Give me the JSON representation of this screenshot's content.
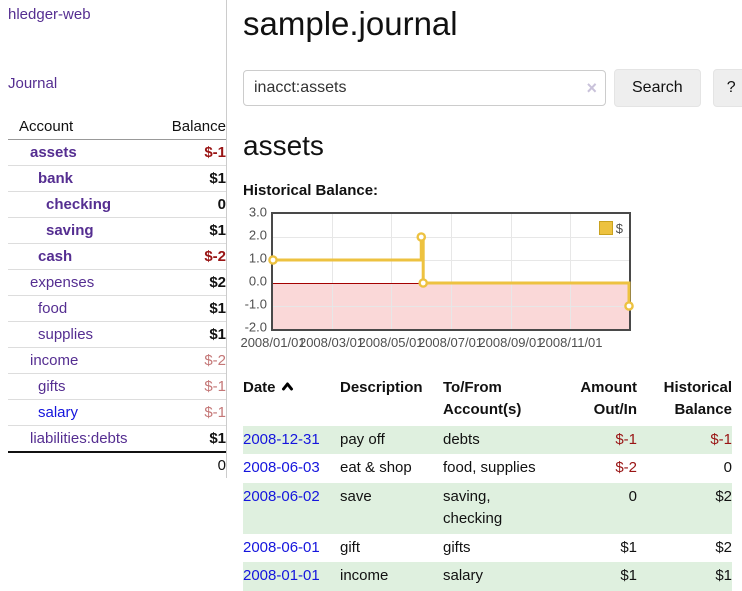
{
  "app": {
    "title": "hledger-web",
    "nav_journal": "Journal"
  },
  "colors": {
    "link_purple": "#552e91",
    "link_blue": "#1515dd",
    "negative_strong": "#991414",
    "negative_light": "#c47777",
    "register_negative": "#993333",
    "row_stripe_green": "#dff0df",
    "series_yellow": "#edc240"
  },
  "sidebar": {
    "headers": [
      "Account",
      "Balance"
    ],
    "rows": [
      {
        "name": "assets",
        "balance": "$-1",
        "depth": 1,
        "bold": true,
        "tone": "red",
        "link": "purple"
      },
      {
        "name": "bank",
        "balance": "$1",
        "depth": 2,
        "bold": true,
        "tone": "black",
        "link": "purple"
      },
      {
        "name": "checking",
        "balance": "0",
        "depth": 3,
        "bold": true,
        "tone": "black",
        "link": "purple"
      },
      {
        "name": "saving",
        "balance": "$1",
        "depth": 3,
        "bold": true,
        "tone": "black",
        "link": "purple"
      },
      {
        "name": "cash",
        "balance": "$-2",
        "depth": 2,
        "bold": true,
        "tone": "red",
        "link": "purple"
      },
      {
        "name": "expenses",
        "balance": "$2",
        "depth": 1,
        "bold": false,
        "tone": "black",
        "link": "purple",
        "bold_balance": true
      },
      {
        "name": "food",
        "balance": "$1",
        "depth": 2,
        "bold": false,
        "tone": "black",
        "link": "purple",
        "bold_balance": true
      },
      {
        "name": "supplies",
        "balance": "$1",
        "depth": 2,
        "bold": false,
        "tone": "black",
        "link": "purple",
        "bold_balance": true
      },
      {
        "name": "income",
        "balance": "$-2",
        "depth": 1,
        "bold": false,
        "tone": "red-light",
        "link": "purple"
      },
      {
        "name": "gifts",
        "balance": "$-1",
        "depth": 2,
        "bold": false,
        "tone": "red-light",
        "link": "purple"
      },
      {
        "name": "salary",
        "balance": "$-1",
        "depth": 2,
        "bold": false,
        "tone": "red-light",
        "link": "blue"
      },
      {
        "name": "liabilities:debts",
        "balance": "$1",
        "depth": 1,
        "bold": false,
        "tone": "black",
        "link": "purple",
        "bold_balance": true
      }
    ],
    "total": "0"
  },
  "main": {
    "title": "sample.journal",
    "search": {
      "value": "inacct:assets",
      "clear_icon": "×",
      "button": "Search",
      "help_button": "?"
    },
    "account_heading": "assets",
    "chart_heading": "Historical Balance:"
  },
  "chart_data": {
    "type": "line",
    "step": true,
    "title": "Historical Balance:",
    "legend": {
      "label": "$",
      "position": "top-right"
    },
    "series": [
      {
        "name": "$",
        "color": "#edc240",
        "points": [
          {
            "date": "2008-01-01",
            "value": 1
          },
          {
            "date": "2008-06-01",
            "value": 2
          },
          {
            "date": "2008-06-03",
            "value": 0
          },
          {
            "date": "2008-12-31",
            "value": -1
          }
        ]
      }
    ],
    "x_range": [
      "2008-01-01",
      "2008-12-31"
    ],
    "y_range": [
      -2,
      3
    ],
    "x_ticks": [
      "2008/01/01",
      "2008/03/01",
      "2008/05/01",
      "2008/07/01",
      "2008/09/01",
      "2008/11/01"
    ],
    "y_ticks": [
      "3.0",
      "2.0",
      "1.0",
      "0.0",
      "-1.0",
      "-2.0"
    ],
    "grid": true,
    "negative_region_color": "#fad8d8",
    "zero_line_color": "#a40000"
  },
  "register": {
    "headers": {
      "date": "Date",
      "description": "Description",
      "accounts": "To/From Account(s)",
      "amount": "Amount Out/In",
      "balance": "Historical Balance"
    },
    "rows": [
      {
        "date": "2008-12-31",
        "description": "pay off",
        "accounts": "debts",
        "amount": "$-1",
        "balance": "$-1",
        "amount_negative": true,
        "balance_negative": true
      },
      {
        "date": "2008-06-03",
        "description": "eat & shop",
        "accounts": "food, supplies",
        "amount": "$-2",
        "balance": "0",
        "amount_negative": true,
        "balance_negative": false
      },
      {
        "date": "2008-06-02",
        "description": "save",
        "accounts": "saving, checking",
        "amount": "0",
        "balance": "$2",
        "amount_negative": false,
        "balance_negative": false
      },
      {
        "date": "2008-06-01",
        "description": "gift",
        "accounts": "gifts",
        "amount": "$1",
        "balance": "$2",
        "amount_negative": false,
        "balance_negative": false
      },
      {
        "date": "2008-01-01",
        "description": "income",
        "accounts": "salary",
        "amount": "$1",
        "balance": "$1",
        "amount_negative": false,
        "balance_negative": false
      }
    ]
  }
}
